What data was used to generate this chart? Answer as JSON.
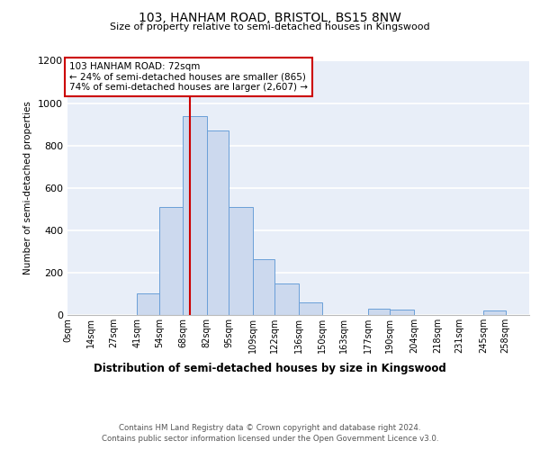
{
  "title1": "103, HANHAM ROAD, BRISTOL, BS15 8NW",
  "title2": "Size of property relative to semi-detached houses in Kingswood",
  "xlabel": "Distribution of semi-detached houses by size in Kingswood",
  "ylabel": "Number of semi-detached properties",
  "property_size": 72,
  "annotation_line1": "103 HANHAM ROAD: 72sqm",
  "annotation_line2": "← 24% of semi-detached houses are smaller (865)",
  "annotation_line3": "74% of semi-detached houses are larger (2,607) →",
  "bin_edges": [
    0,
    14,
    27,
    41,
    54,
    68,
    82,
    95,
    109,
    122,
    136,
    150,
    163,
    177,
    190,
    204,
    218,
    231,
    245,
    258,
    272
  ],
  "bar_heights": [
    0,
    0,
    0,
    100,
    510,
    940,
    870,
    510,
    265,
    150,
    60,
    0,
    0,
    30,
    25,
    0,
    0,
    0,
    20,
    0
  ],
  "bar_color": "#ccd9ee",
  "bar_edge_color": "#6a9fd8",
  "property_line_color": "#cc0000",
  "box_edge_color": "#cc0000",
  "bg_color": "#e8eef8",
  "grid_color": "#ffffff",
  "ylim_max": 1200,
  "yticks": [
    0,
    200,
    400,
    600,
    800,
    1000,
    1200
  ],
  "footer1": "Contains HM Land Registry data © Crown copyright and database right 2024.",
  "footer2": "Contains public sector information licensed under the Open Government Licence v3.0."
}
